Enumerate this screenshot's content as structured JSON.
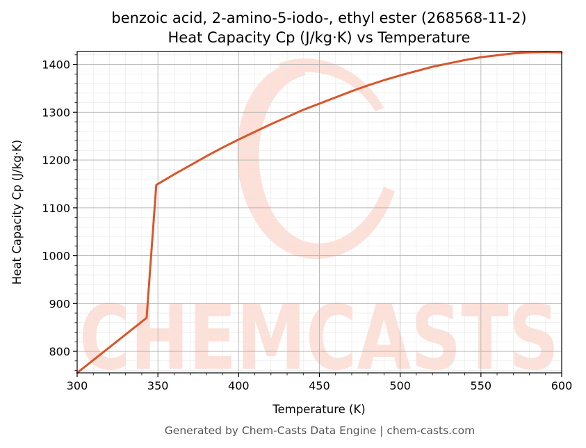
{
  "chart_data": {
    "type": "line",
    "title": "benzoic acid, 2-amino-5-iodo-, ethyl ester (268568-11-2)",
    "subtitle": "Heat Capacity Cp (J/kg·K) vs Temperature",
    "xlabel": "Temperature (K)",
    "ylabel": "Heat Capacity Cp (J/kg·K)",
    "xlim": [
      300,
      600
    ],
    "ylim": [
      755,
      1427
    ],
    "xticks": [
      300,
      350,
      400,
      450,
      500,
      550,
      600
    ],
    "yticks": [
      800,
      900,
      1000,
      1100,
      1200,
      1300,
      1400
    ],
    "grid": true,
    "legend": "none",
    "series": [
      {
        "color": "#d9552a",
        "x": [
          300,
          343,
          349,
          360,
          370,
          380,
          390,
          400,
          410,
          420,
          430,
          440,
          450,
          460,
          470,
          480,
          490,
          500,
          510,
          520,
          530,
          540,
          550,
          560,
          570,
          580,
          590,
          600
        ],
        "y": [
          755,
          870,
          1148,
          1170,
          1189,
          1208,
          1226,
          1243,
          1259,
          1275,
          1290,
          1305,
          1318,
          1331,
          1344,
          1356,
          1367,
          1377,
          1386,
          1395,
          1402,
          1409,
          1415,
          1419,
          1423,
          1425,
          1426,
          1425
        ]
      }
    ]
  },
  "watermark": {
    "text": "CHEMCASTS",
    "color": "#fde0d8"
  },
  "footer": "Generated by Chem-Casts Data Engine | chem-casts.com"
}
